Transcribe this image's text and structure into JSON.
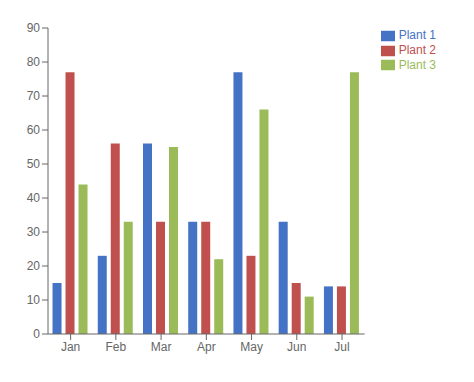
{
  "chart_data": {
    "type": "bar",
    "categories": [
      "Jan",
      "Feb",
      "Mar",
      "Apr",
      "May",
      "Jun",
      "Jul"
    ],
    "series": [
      {
        "name": "Plant 1",
        "color": "#4472C4",
        "values": [
          15,
          23,
          56,
          33,
          77,
          33,
          14
        ]
      },
      {
        "name": "Plant 2",
        "color": "#C0504D",
        "values": [
          77,
          56,
          33,
          33,
          23,
          15,
          14
        ]
      },
      {
        "name": "Plant 3",
        "color": "#9BBB59",
        "values": [
          44,
          33,
          55,
          22,
          66,
          11,
          77
        ]
      }
    ],
    "ylim": [
      0,
      90
    ],
    "yticks": [
      0,
      10,
      20,
      30,
      40,
      50,
      60,
      70,
      80,
      90
    ],
    "grid": false,
    "legend": "right"
  }
}
